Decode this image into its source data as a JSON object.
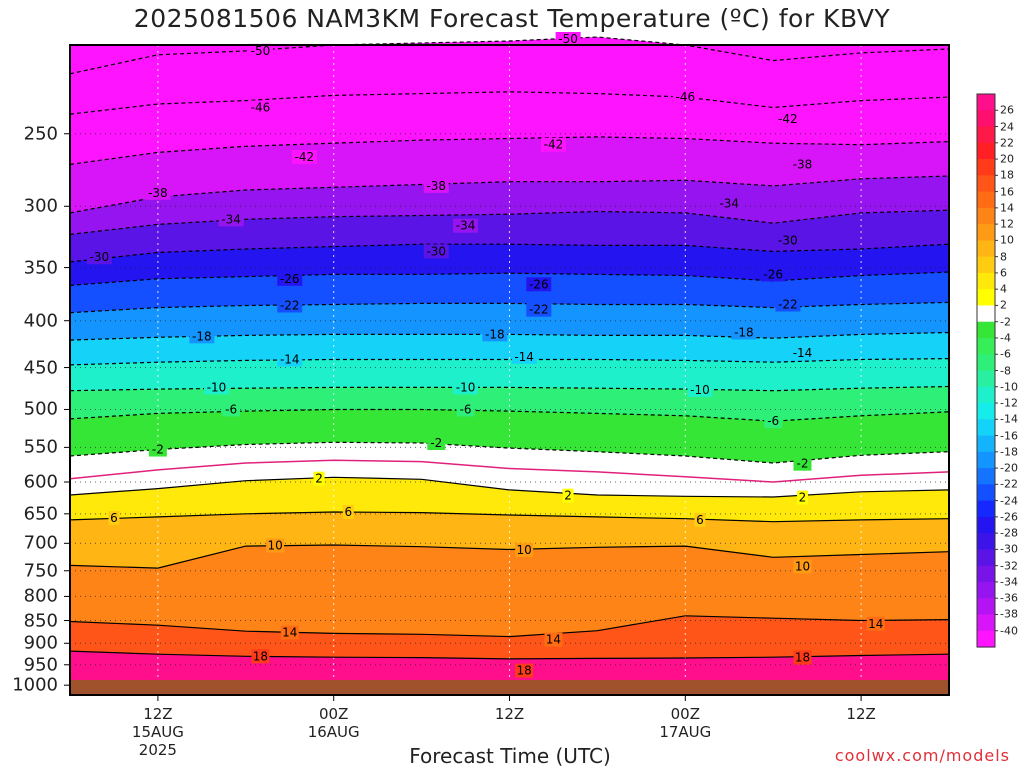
{
  "title": "2025081506 NAM3KM Forecast Temperature (ºC) for KBVY",
  "credit": "coolwx.com/models",
  "chart_data": {
    "type": "heatmap",
    "title": "2025081506 NAM3KM Forecast Temperature (ºC) for KBVY",
    "xlabel": "Forecast Time (UTC)",
    "ylabel": "",
    "x_unit": "forecast hour",
    "x_range": [
      0,
      60
    ],
    "y_range_hPa": [
      1025,
      200
    ],
    "y_ticks": [
      250,
      300,
      350,
      400,
      450,
      500,
      550,
      600,
      650,
      700,
      750,
      800,
      850,
      900,
      950,
      1000
    ],
    "x_ticks": [
      {
        "hour": 6,
        "lines": [
          "12Z",
          "15AUG",
          "2025"
        ]
      },
      {
        "hour": 18,
        "lines": [
          "00Z",
          "16AUG"
        ]
      },
      {
        "hour": 30,
        "lines": [
          "12Z"
        ]
      },
      {
        "hour": 42,
        "lines": [
          "00Z",
          "17AUG"
        ]
      },
      {
        "hour": 54,
        "lines": [
          "12Z"
        ]
      }
    ],
    "contours": [
      {
        "t": -50,
        "hours": [
          0,
          6,
          12,
          18,
          24,
          30,
          36,
          42,
          48,
          54,
          60
        ],
        "hPa": [
          215,
          205,
          203,
          200,
          199,
          198,
          196,
          200,
          208,
          204,
          202
        ],
        "labels": [
          {
            "h": 13,
            "hPa": 203
          },
          {
            "h": 34,
            "hPa": 197
          }
        ]
      },
      {
        "t": -46,
        "hours": [
          0,
          6,
          12,
          18,
          24,
          30,
          36,
          42,
          48,
          54,
          60
        ],
        "hPa": [
          238,
          232,
          230,
          227,
          226,
          225,
          226,
          228,
          234,
          230,
          228
        ],
        "labels": [
          {
            "h": 13,
            "hPa": 234
          },
          {
            "h": 42,
            "hPa": 228
          }
        ]
      },
      {
        "t": -42,
        "hours": [
          0,
          6,
          12,
          18,
          24,
          30,
          36,
          42,
          48,
          54,
          60
        ],
        "hPa": [
          270,
          262,
          258,
          256,
          254,
          253,
          252,
          253,
          256,
          257,
          255
        ],
        "labels": [
          {
            "h": 16,
            "hPa": 265
          },
          {
            "h": 33,
            "hPa": 257
          },
          {
            "h": 49,
            "hPa": 241
          }
        ]
      },
      {
        "t": -38,
        "hours": [
          0,
          6,
          12,
          18,
          24,
          30,
          36,
          42,
          48,
          54,
          60
        ],
        "hPa": [
          305,
          293,
          288,
          286,
          284,
          282,
          282,
          281,
          285,
          280,
          278
        ],
        "labels": [
          {
            "h": 6,
            "hPa": 290
          },
          {
            "h": 25,
            "hPa": 285
          },
          {
            "h": 50,
            "hPa": 270
          }
        ]
      },
      {
        "t": -34,
        "hours": [
          0,
          6,
          12,
          18,
          24,
          30,
          36,
          42,
          48,
          54,
          60
        ],
        "hPa": [
          322,
          314,
          310,
          308,
          307,
          306,
          304,
          305,
          313,
          305,
          303
        ],
        "labels": [
          {
            "h": 11,
            "hPa": 310
          },
          {
            "h": 27,
            "hPa": 315
          },
          {
            "h": 45,
            "hPa": 298
          }
        ]
      },
      {
        "t": -30,
        "hours": [
          0,
          6,
          12,
          18,
          24,
          30,
          36,
          42,
          48,
          54,
          60
        ],
        "hPa": [
          345,
          337,
          334,
          332,
          330,
          330,
          331,
          331,
          336,
          334,
          330
        ],
        "labels": [
          {
            "h": 2,
            "hPa": 341
          },
          {
            "h": 25,
            "hPa": 336
          },
          {
            "h": 49,
            "hPa": 327
          }
        ]
      },
      {
        "t": -26,
        "hours": [
          0,
          6,
          12,
          18,
          24,
          30,
          36,
          42,
          48,
          54,
          60
        ],
        "hPa": [
          366,
          360,
          358,
          356,
          356,
          355,
          356,
          357,
          362,
          357,
          354
        ],
        "labels": [
          {
            "h": 15,
            "hPa": 360
          },
          {
            "h": 32,
            "hPa": 365
          },
          {
            "h": 48,
            "hPa": 356
          }
        ]
      },
      {
        "t": -22,
        "hours": [
          0,
          6,
          12,
          18,
          24,
          30,
          36,
          42,
          48,
          54,
          60
        ],
        "hPa": [
          392,
          387,
          385,
          384,
          383,
          383,
          384,
          384,
          387,
          384,
          382
        ],
        "labels": [
          {
            "h": 15,
            "hPa": 385
          },
          {
            "h": 32,
            "hPa": 389
          },
          {
            "h": 49,
            "hPa": 384
          }
        ]
      },
      {
        "t": -18,
        "hours": [
          0,
          6,
          12,
          18,
          24,
          30,
          36,
          42,
          48,
          54,
          60
        ],
        "hPa": [
          420,
          417,
          415,
          414,
          414,
          414,
          415,
          415,
          418,
          414,
          412
        ],
        "labels": [
          {
            "h": 9,
            "hPa": 416
          },
          {
            "h": 29,
            "hPa": 414
          },
          {
            "h": 46,
            "hPa": 412
          }
        ]
      },
      {
        "t": -14,
        "hours": [
          0,
          6,
          12,
          18,
          24,
          30,
          36,
          42,
          48,
          54,
          60
        ],
        "hPa": [
          447,
          444,
          442,
          441,
          441,
          441,
          441,
          442,
          444,
          441,
          440
        ],
        "labels": [
          {
            "h": 15,
            "hPa": 441
          },
          {
            "h": 31,
            "hPa": 438
          },
          {
            "h": 50,
            "hPa": 434
          }
        ]
      },
      {
        "t": -10,
        "hours": [
          0,
          6,
          12,
          18,
          24,
          30,
          36,
          42,
          48,
          54,
          60
        ],
        "hPa": [
          477,
          475,
          474,
          473,
          473,
          473,
          474,
          475,
          477,
          474,
          472
        ],
        "labels": [
          {
            "h": 10,
            "hPa": 473
          },
          {
            "h": 27,
            "hPa": 473
          },
          {
            "h": 43,
            "hPa": 476
          }
        ]
      },
      {
        "t": -6,
        "hours": [
          0,
          6,
          12,
          18,
          24,
          30,
          36,
          42,
          48,
          54,
          60
        ],
        "hPa": [
          512,
          505,
          502,
          500,
          500,
          502,
          505,
          508,
          515,
          508,
          503
        ],
        "labels": [
          {
            "h": 11,
            "hPa": 500
          },
          {
            "h": 27,
            "hPa": 500
          },
          {
            "h": 48,
            "hPa": 515
          }
        ]
      },
      {
        "t": -2,
        "hours": [
          0,
          6,
          12,
          18,
          24,
          30,
          36,
          42,
          48,
          54,
          60
        ],
        "hPa": [
          562,
          553,
          546,
          543,
          544,
          551,
          556,
          562,
          572,
          561,
          556
        ],
        "labels": [
          {
            "h": 6,
            "hPa": 553
          },
          {
            "h": 25,
            "hPa": 544
          },
          {
            "h": 50,
            "hPa": 573
          }
        ]
      },
      {
        "t": 0,
        "hours": [
          0,
          6,
          12,
          18,
          24,
          30,
          36,
          42,
          48,
          54,
          60
        ],
        "hPa": [
          595,
          582,
          572,
          568,
          570,
          580,
          585,
          592,
          600,
          590,
          585
        ],
        "labels": []
      },
      {
        "t": 2,
        "hours": [
          0,
          6,
          12,
          18,
          24,
          30,
          36,
          42,
          48,
          54,
          60
        ],
        "hPa": [
          620,
          610,
          598,
          593,
          596,
          612,
          620,
          622,
          623,
          615,
          612
        ],
        "labels": [
          {
            "h": 17,
            "hPa": 595
          },
          {
            "h": 34,
            "hPa": 621
          },
          {
            "h": 50,
            "hPa": 624
          }
        ]
      },
      {
        "t": 6,
        "hours": [
          0,
          6,
          12,
          18,
          24,
          30,
          36,
          42,
          48,
          54,
          60
        ],
        "hPa": [
          660,
          655,
          650,
          647,
          648,
          652,
          655,
          658,
          663,
          660,
          658
        ],
        "labels": [
          {
            "h": 3,
            "hPa": 657
          },
          {
            "h": 19,
            "hPa": 647
          },
          {
            "h": 43,
            "hPa": 660
          }
        ]
      },
      {
        "t": 10,
        "hours": [
          0,
          6,
          12,
          18,
          24,
          30,
          36,
          42,
          48,
          54,
          60
        ],
        "hPa": [
          740,
          745,
          705,
          703,
          706,
          711,
          707,
          705,
          725,
          720,
          715
        ],
        "labels": [
          {
            "h": 14,
            "hPa": 704
          },
          {
            "h": 31,
            "hPa": 712
          },
          {
            "h": 50,
            "hPa": 742
          }
        ]
      },
      {
        "t": 14,
        "hours": [
          0,
          6,
          12,
          18,
          24,
          30,
          36,
          42,
          48,
          54,
          60
        ],
        "hPa": [
          852,
          860,
          873,
          878,
          880,
          885,
          872,
          840,
          845,
          850,
          848
        ],
        "labels": [
          {
            "h": 15,
            "hPa": 876
          },
          {
            "h": 33,
            "hPa": 892
          },
          {
            "h": 55,
            "hPa": 857
          }
        ]
      },
      {
        "t": 18,
        "hours": [
          0,
          6,
          12,
          18,
          24,
          30,
          36,
          42,
          48,
          54,
          60
        ],
        "hPa": [
          918,
          925,
          930,
          932,
          933,
          936,
          935,
          934,
          932,
          928,
          925
        ],
        "labels": [
          {
            "h": 13,
            "hPa": 930
          },
          {
            "h": 31,
            "hPa": 964
          },
          {
            "h": 50,
            "hPa": 933
          }
        ]
      }
    ],
    "colorbar": {
      "levels": [
        26,
        24,
        22,
        20,
        18,
        16,
        14,
        12,
        10,
        8,
        6,
        4,
        2,
        -2,
        -4,
        -6,
        -8,
        -10,
        -12,
        -14,
        -16,
        -18,
        -20,
        -22,
        -24,
        -26,
        -28,
        -30,
        -32,
        -34,
        -36,
        -38,
        -40
      ],
      "colors": [
        "#ff0f8c",
        "#ff0f6e",
        "#ff1948",
        "#ff1f24",
        "#ff3b1a",
        "#ff5518",
        "#ff6c14",
        "#ff8418",
        "#ff9a14",
        "#ffb514",
        "#ffcc12",
        "#ffe90a",
        "#ffff00",
        "#ffffff",
        "#36e636",
        "#36ee58",
        "#2eef78",
        "#28f0a0",
        "#1ef0cc",
        "#16ecea",
        "#14d2f8",
        "#14b4fc",
        "#1494fe",
        "#1474ff",
        "#1450ff",
        "#1428ff",
        "#2314f0",
        "#3c14e8",
        "#5a14e6",
        "#7814e8",
        "#9614f0",
        "#b414f4",
        "#d814f8",
        "#ff14ff"
      ]
    }
  }
}
